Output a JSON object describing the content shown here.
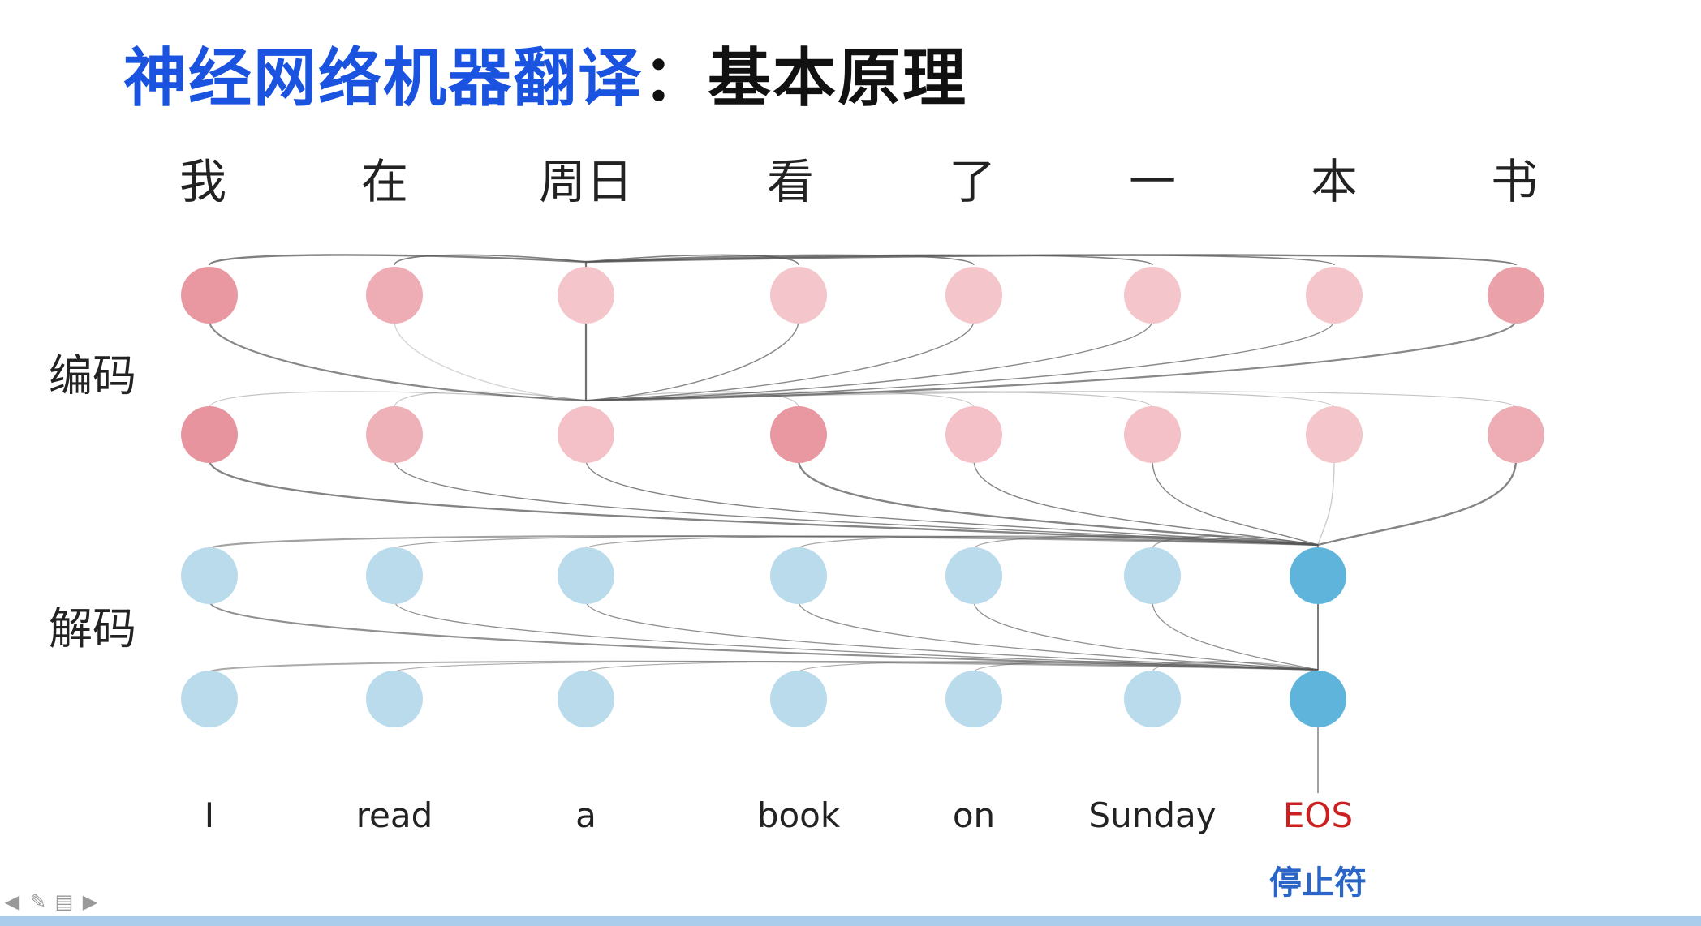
{
  "title": {
    "part_blue": "神经网络机器翻译",
    "part_black": "：基本原理"
  },
  "labels": {
    "encoder": "编码",
    "decoder": "解码",
    "stop_caption": "停止符"
  },
  "source_tokens": [
    "我",
    "在",
    "周日",
    "看",
    "了",
    "一",
    "本",
    "书"
  ],
  "target_tokens": [
    "I",
    "read",
    "a",
    "book",
    "on",
    "Sunday",
    "EOS"
  ],
  "colors": {
    "title_blue": "#1a53e0",
    "eos_red": "#cc1f1f",
    "stop_blue": "#2a66c8",
    "edge_gray": "#555555",
    "decoder_node": "#b9dbec",
    "decoder_active": "#5fb4dc"
  },
  "encoder_layer1_intensity": [
    0.85,
    0.6,
    0.3,
    0.3,
    0.3,
    0.3,
    0.3,
    0.75
  ],
  "encoder_layer2_intensity": [
    0.9,
    0.55,
    0.35,
    0.85,
    0.35,
    0.35,
    0.3,
    0.6
  ],
  "decoder_active_index": 6,
  "toolbar_icons": [
    "arrow-left-icon",
    "pen-icon",
    "menu-icon",
    "arrow-right-icon"
  ]
}
